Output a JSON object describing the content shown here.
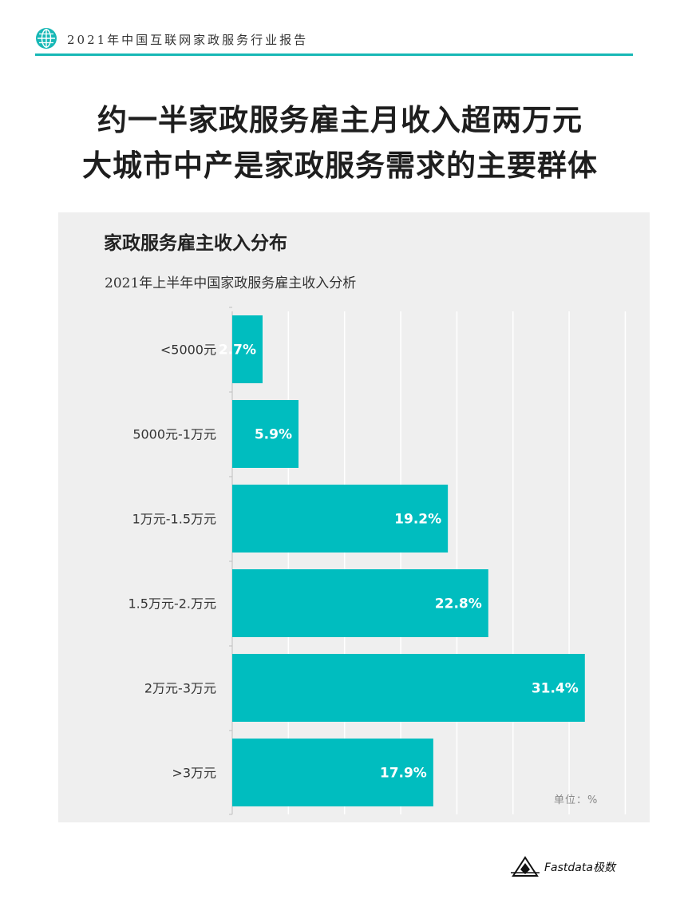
{
  "header": {
    "report_title": "2021年中国互联网家政服务行业报告",
    "icon": "globe-icon",
    "accent_color": "#17b8b6"
  },
  "page": {
    "title_line1": "约一半家政服务雇主月收入超两万元",
    "title_line2": "大城市中产是家政服务需求的主要群体"
  },
  "chart_data": {
    "type": "bar",
    "orientation": "horizontal",
    "title": "家政服务雇主收入分布",
    "subtitle": "2021年上半年中国家政服务雇主收入分析",
    "categories": [
      "<5000元",
      "5000元-1万元",
      "1万元-1.5万元",
      "1.5万元-2.万元",
      "2万元-3万元",
      ">3万元"
    ],
    "values": [
      2.7,
      5.9,
      19.2,
      22.8,
      31.4,
      17.9
    ],
    "value_labels": [
      "2.7%",
      "5.9%",
      "19.2%",
      "22.8%",
      "31.4%",
      "17.9%"
    ],
    "xlim": [
      0,
      35
    ],
    "grid": true,
    "bar_color": "#00bdbf",
    "unit_note": "单位：%"
  },
  "footer": {
    "brand": "Fastdata极数",
    "icon": "fastdata-logo-icon"
  }
}
